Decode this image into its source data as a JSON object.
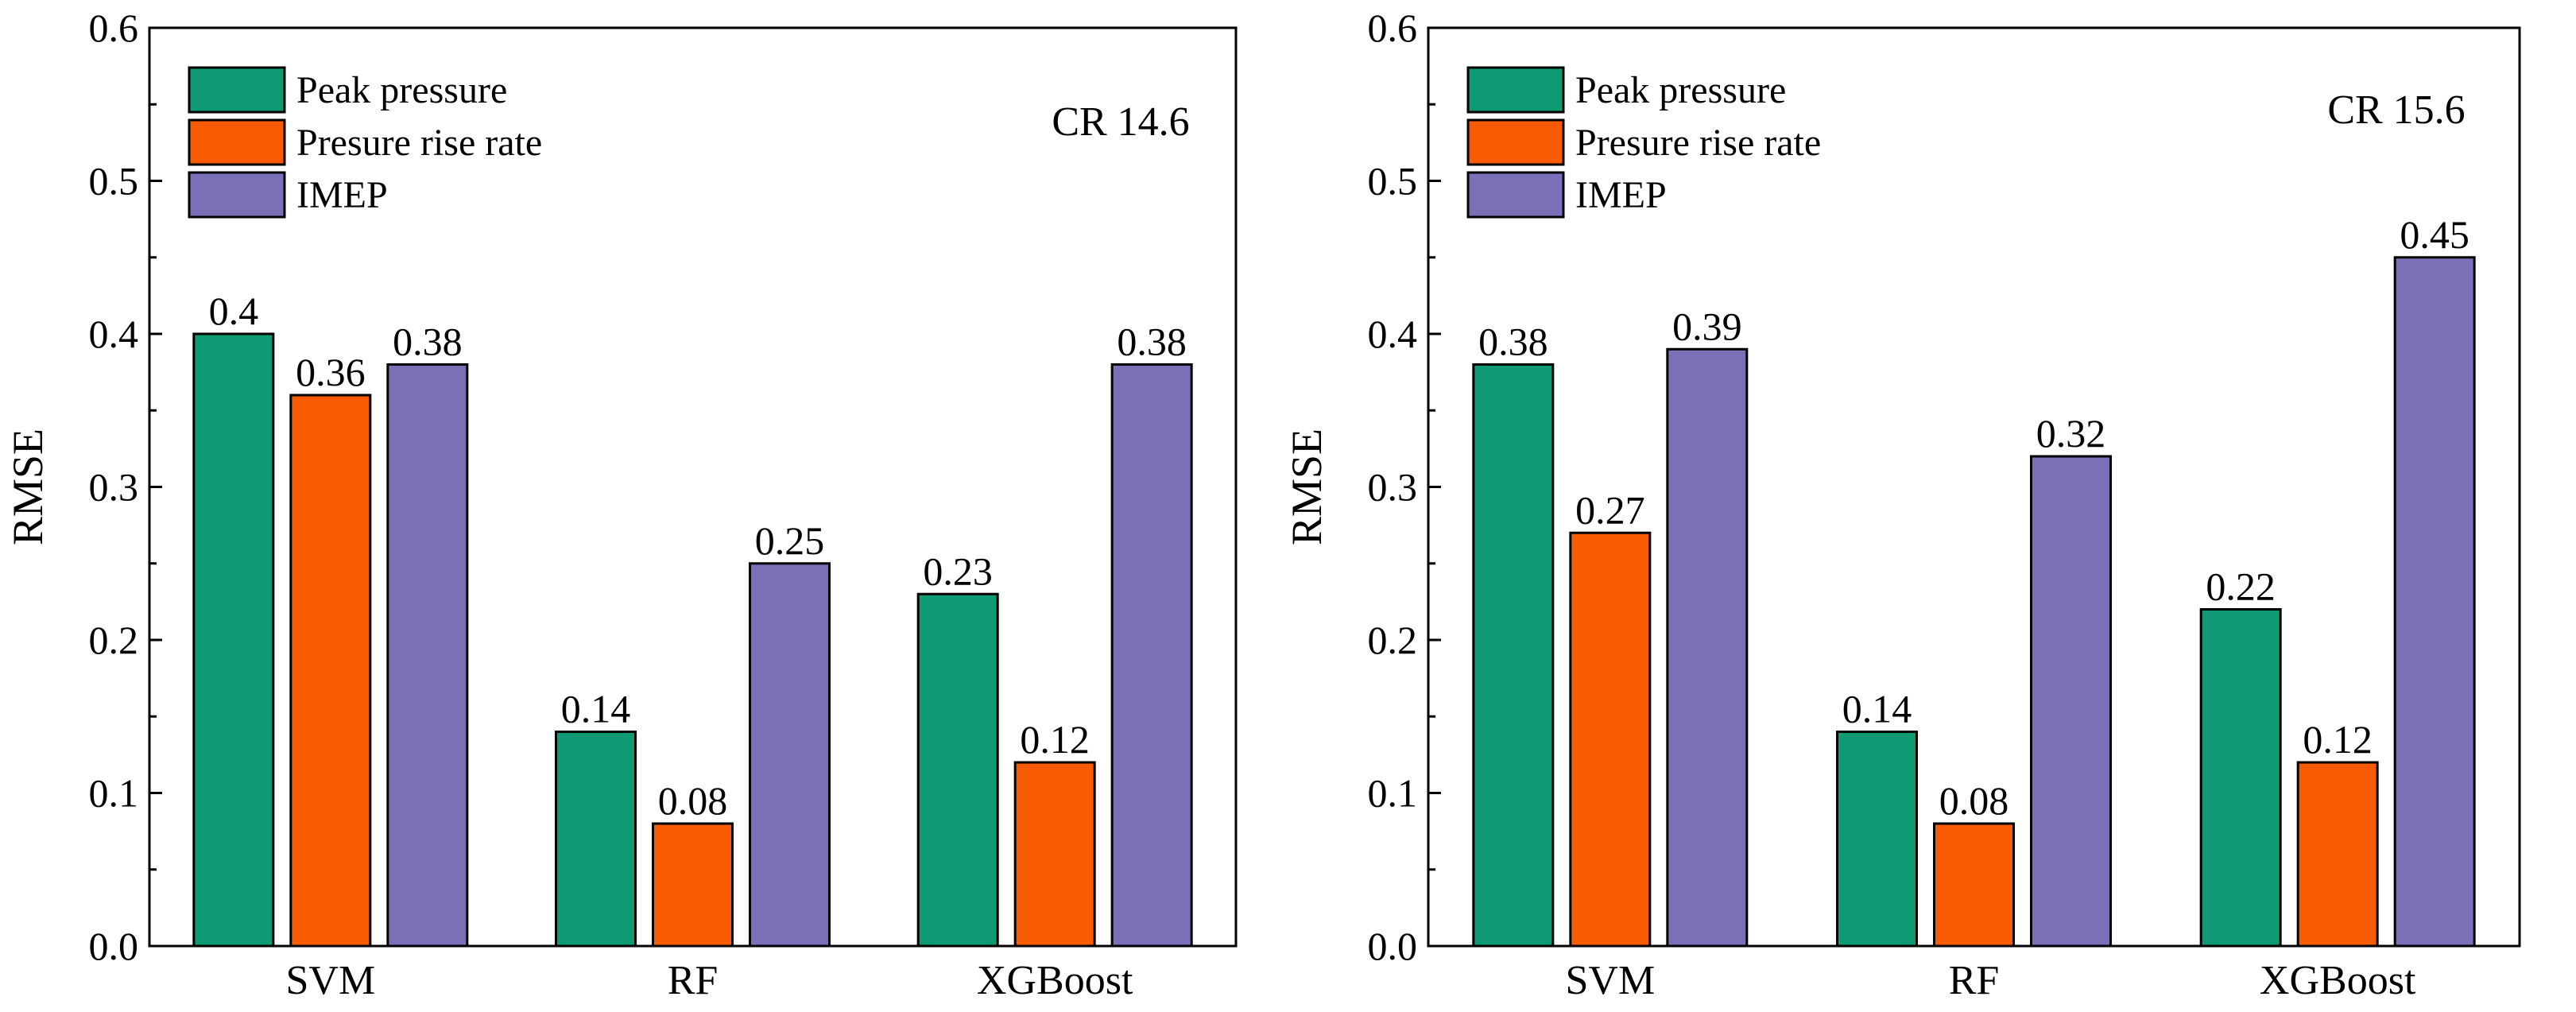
{
  "chart_data": [
    {
      "type": "bar",
      "annotation": "CR 14.6",
      "ylabel": "RMSE",
      "xlabel": "",
      "ylim": [
        0,
        0.6
      ],
      "yticks": [
        "0.0",
        "0.1",
        "0.2",
        "0.3",
        "0.4",
        "0.5",
        "0.6"
      ],
      "categories": [
        "SVM",
        "RF",
        "XGBoost"
      ],
      "series": [
        {
          "name": "Peak pressure",
          "color": "#0e9a73",
          "values": [
            0.4,
            0.14,
            0.23
          ],
          "labels": [
            "0.4",
            "0.14",
            "0.23"
          ]
        },
        {
          "name": "Presure rise rate",
          "color": "#f75c03",
          "values": [
            0.36,
            0.08,
            0.12
          ],
          "labels": [
            "0.36",
            "0.08",
            "0.12"
          ]
        },
        {
          "name": "IMEP",
          "color": "#7a70b8",
          "values": [
            0.38,
            0.25,
            0.38
          ],
          "labels": [
            "0.38",
            "0.25",
            "0.38"
          ]
        }
      ],
      "legend": "top-left"
    },
    {
      "type": "bar",
      "annotation": "CR 15.6",
      "ylabel": "RMSE",
      "xlabel": "",
      "ylim": [
        0,
        0.6
      ],
      "yticks": [
        "0.0",
        "0.1",
        "0.2",
        "0.3",
        "0.4",
        "0.5",
        "0.6"
      ],
      "categories": [
        "SVM",
        "RF",
        "XGBoost"
      ],
      "series": [
        {
          "name": "Peak pressure",
          "color": "#0e9a73",
          "values": [
            0.38,
            0.14,
            0.22
          ],
          "labels": [
            "0.38",
            "0.14",
            "0.22"
          ]
        },
        {
          "name": "Presure rise rate",
          "color": "#f75c03",
          "values": [
            0.27,
            0.08,
            0.12
          ],
          "labels": [
            "0.27",
            "0.08",
            "0.12"
          ]
        },
        {
          "name": "IMEP",
          "color": "#7a70b8",
          "values": [
            0.39,
            0.32,
            0.45
          ],
          "labels": [
            "0.39",
            "0.32",
            "0.45"
          ]
        }
      ],
      "legend": "top-left"
    }
  ]
}
